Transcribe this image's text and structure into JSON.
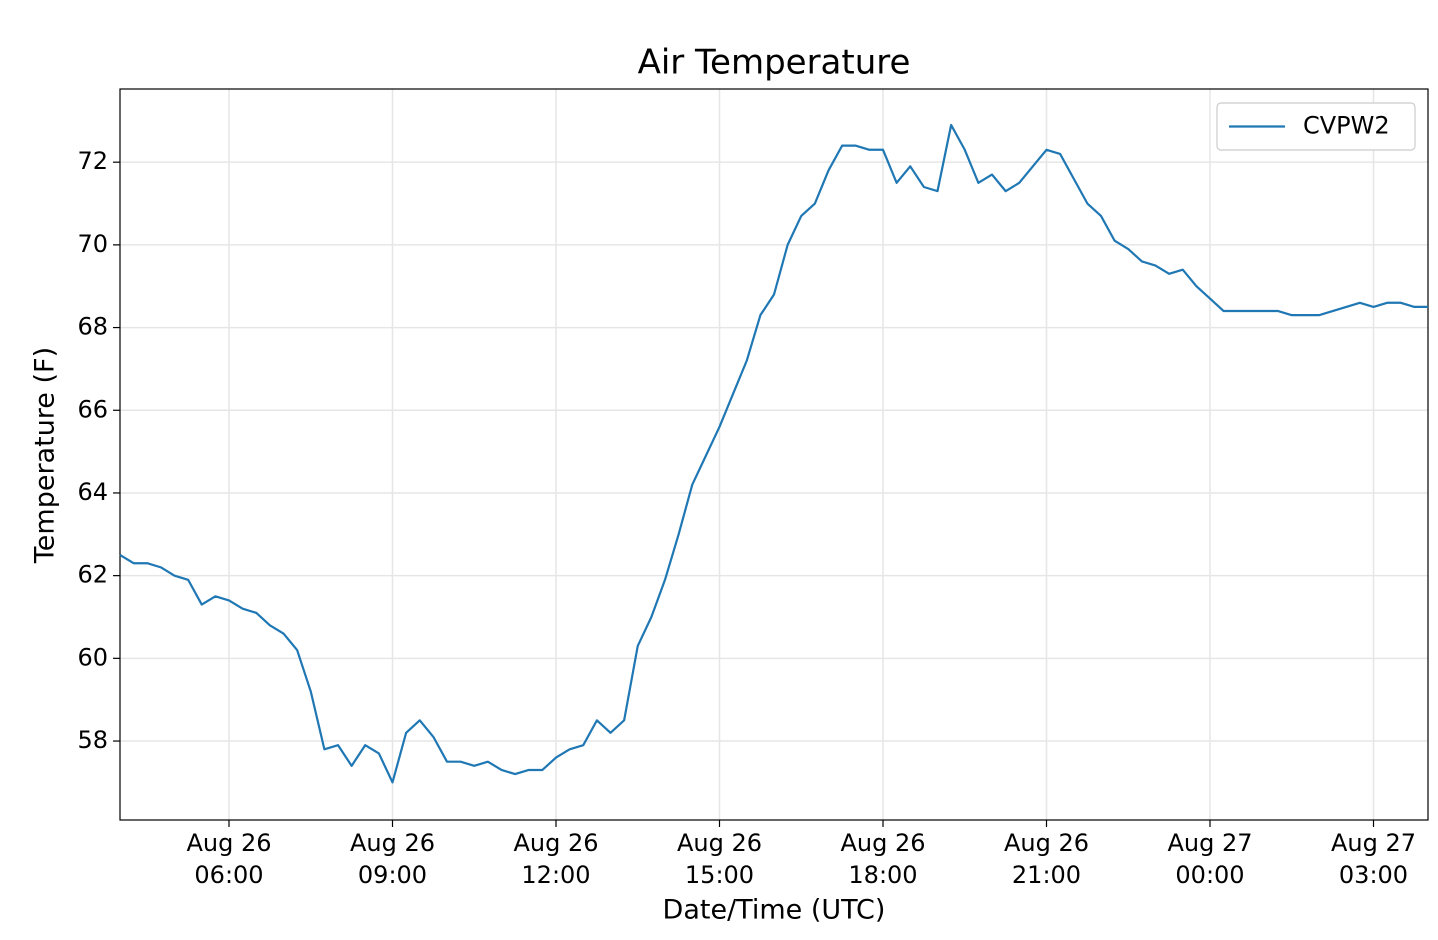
{
  "chart_data": {
    "type": "line",
    "title": "Air Temperature",
    "x_label": "Date/Time (UTC)",
    "y_label": "Temperature (F)",
    "x": [
      "Aug 26 04:00",
      "Aug 26 04:15",
      "Aug 26 04:30",
      "Aug 26 04:45",
      "Aug 26 05:00",
      "Aug 26 05:15",
      "Aug 26 05:30",
      "Aug 26 05:45",
      "Aug 26 06:00",
      "Aug 26 06:15",
      "Aug 26 06:30",
      "Aug 26 06:45",
      "Aug 26 07:00",
      "Aug 26 07:15",
      "Aug 26 07:30",
      "Aug 26 07:45",
      "Aug 26 08:00",
      "Aug 26 08:15",
      "Aug 26 08:30",
      "Aug 26 08:45",
      "Aug 26 09:00",
      "Aug 26 09:15",
      "Aug 26 09:30",
      "Aug 26 09:45",
      "Aug 26 10:00",
      "Aug 26 10:15",
      "Aug 26 10:30",
      "Aug 26 10:45",
      "Aug 26 11:00",
      "Aug 26 11:15",
      "Aug 26 11:30",
      "Aug 26 11:45",
      "Aug 26 12:00",
      "Aug 26 12:15",
      "Aug 26 12:30",
      "Aug 26 12:45",
      "Aug 26 13:00",
      "Aug 26 13:15",
      "Aug 26 13:30",
      "Aug 26 13:45",
      "Aug 26 14:00",
      "Aug 26 14:15",
      "Aug 26 14:30",
      "Aug 26 14:45",
      "Aug 26 15:00",
      "Aug 26 15:15",
      "Aug 26 15:30",
      "Aug 26 15:45",
      "Aug 26 16:00",
      "Aug 26 16:15",
      "Aug 26 16:30",
      "Aug 26 16:45",
      "Aug 26 17:00",
      "Aug 26 17:15",
      "Aug 26 17:30",
      "Aug 26 17:45",
      "Aug 26 18:00",
      "Aug 26 18:15",
      "Aug 26 18:30",
      "Aug 26 18:45",
      "Aug 26 19:00",
      "Aug 26 19:15",
      "Aug 26 19:30",
      "Aug 26 19:45",
      "Aug 26 20:00",
      "Aug 26 20:15",
      "Aug 26 20:30",
      "Aug 26 20:45",
      "Aug 26 21:00",
      "Aug 26 21:15",
      "Aug 26 21:30",
      "Aug 26 21:45",
      "Aug 26 22:00",
      "Aug 26 22:15",
      "Aug 26 22:30",
      "Aug 26 22:45",
      "Aug 26 23:00",
      "Aug 26 23:15",
      "Aug 26 23:30",
      "Aug 26 23:45",
      "Aug 27 00:00",
      "Aug 27 00:15",
      "Aug 27 00:30",
      "Aug 27 00:45",
      "Aug 27 01:00",
      "Aug 27 01:15",
      "Aug 27 01:30",
      "Aug 27 01:45",
      "Aug 27 02:00",
      "Aug 27 02:15",
      "Aug 27 02:30",
      "Aug 27 02:45",
      "Aug 27 03:00",
      "Aug 27 03:15",
      "Aug 27 03:30",
      "Aug 27 03:45",
      "Aug 27 04:00"
    ],
    "series": [
      {
        "name": "CVPW2",
        "color": "#1f77b4",
        "values": [
          62.5,
          62.3,
          62.3,
          62.2,
          62.0,
          61.9,
          61.3,
          61.5,
          61.4,
          61.2,
          61.1,
          60.8,
          60.6,
          60.2,
          59.2,
          57.8,
          57.9,
          57.4,
          57.9,
          57.7,
          57.0,
          58.2,
          58.5,
          58.1,
          57.5,
          57.5,
          57.4,
          57.5,
          57.3,
          57.2,
          57.3,
          57.3,
          57.6,
          57.8,
          57.9,
          58.5,
          58.2,
          58.5,
          60.3,
          61.0,
          61.9,
          63.0,
          64.2,
          64.9,
          65.6,
          66.4,
          67.2,
          68.3,
          68.8,
          70.0,
          70.7,
          71.0,
          71.8,
          72.4,
          72.4,
          72.3,
          72.3,
          71.5,
          71.9,
          71.4,
          71.3,
          72.9,
          72.3,
          71.5,
          71.7,
          71.3,
          71.5,
          71.9,
          72.3,
          72.2,
          71.6,
          71.0,
          70.7,
          70.1,
          69.9,
          69.6,
          69.5,
          69.3,
          69.4,
          69.0,
          68.7,
          68.4,
          68.4,
          68.4,
          68.4,
          68.4,
          68.3,
          68.3,
          68.3,
          68.4,
          68.5,
          68.6,
          68.5,
          68.6,
          68.6,
          68.5,
          68.5
        ]
      }
    ],
    "xlim": [
      "Aug 26 04:00",
      "Aug 27 04:00"
    ],
    "xticks": [
      {
        "value": "Aug 26 06:00",
        "label": [
          "Aug 26",
          "06:00"
        ]
      },
      {
        "value": "Aug 26 09:00",
        "label": [
          "Aug 26",
          "09:00"
        ]
      },
      {
        "value": "Aug 26 12:00",
        "label": [
          "Aug 26",
          "12:00"
        ]
      },
      {
        "value": "Aug 26 15:00",
        "label": [
          "Aug 26",
          "15:00"
        ]
      },
      {
        "value": "Aug 26 18:00",
        "label": [
          "Aug 26",
          "18:00"
        ]
      },
      {
        "value": "Aug 26 21:00",
        "label": [
          "Aug 26",
          "21:00"
        ]
      },
      {
        "value": "Aug 27 00:00",
        "label": [
          "Aug 27",
          "00:00"
        ]
      },
      {
        "value": "Aug 27 03:00",
        "label": [
          "Aug 27",
          "03:00"
        ]
      }
    ],
    "ylim": [
      56.09,
      73.77
    ],
    "yticks": [
      58,
      60,
      62,
      64,
      66,
      68,
      70,
      72
    ],
    "grid": true,
    "legend": "upper right"
  }
}
